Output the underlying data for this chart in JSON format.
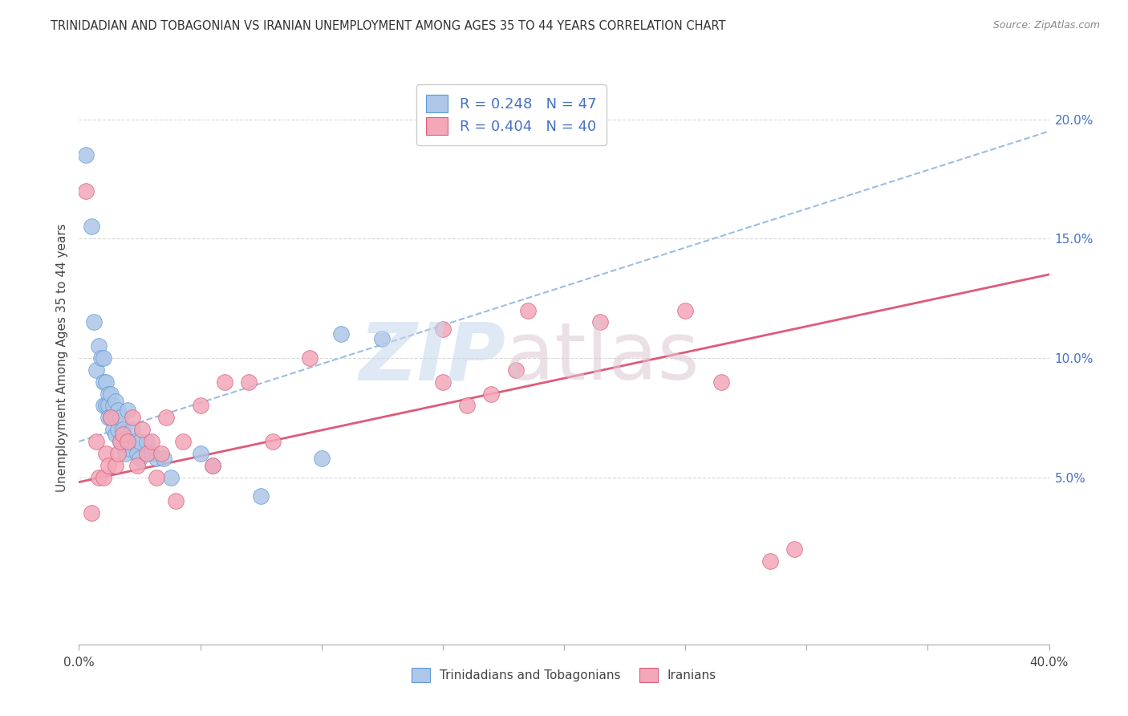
{
  "title": "TRINIDADIAN AND TOBAGONIAN VS IRANIAN UNEMPLOYMENT AMONG AGES 35 TO 44 YEARS CORRELATION CHART",
  "source": "Source: ZipAtlas.com",
  "ylabel": "Unemployment Among Ages 35 to 44 years",
  "xlim": [
    0.0,
    0.4
  ],
  "ylim": [
    -0.02,
    0.22
  ],
  "yticks_right": [
    0.05,
    0.1,
    0.15,
    0.2
  ],
  "ytick_labels_right": [
    "5.0%",
    "10.0%",
    "15.0%",
    "20.0%"
  ],
  "blue_R": 0.248,
  "blue_N": 47,
  "pink_R": 0.404,
  "pink_N": 40,
  "blue_color": "#aec6e8",
  "blue_edge_color": "#5b9bd5",
  "blue_dashed_color": "#9dbde0",
  "pink_color": "#f4a7b9",
  "pink_edge_color": "#d4607a",
  "pink_line_color": "#e05a78",
  "background_color": "#ffffff",
  "grid_color": "#d8d8d8",
  "blue_scatter_x": [
    0.003,
    0.005,
    0.006,
    0.007,
    0.008,
    0.009,
    0.01,
    0.01,
    0.01,
    0.011,
    0.011,
    0.012,
    0.012,
    0.012,
    0.013,
    0.013,
    0.014,
    0.014,
    0.015,
    0.015,
    0.015,
    0.016,
    0.016,
    0.017,
    0.017,
    0.018,
    0.018,
    0.019,
    0.02,
    0.02,
    0.021,
    0.022,
    0.023,
    0.024,
    0.025,
    0.025,
    0.028,
    0.03,
    0.032,
    0.035,
    0.038,
    0.05,
    0.055,
    0.075,
    0.1,
    0.108,
    0.125
  ],
  "blue_scatter_y": [
    0.185,
    0.155,
    0.115,
    0.095,
    0.105,
    0.1,
    0.1,
    0.09,
    0.08,
    0.09,
    0.08,
    0.085,
    0.08,
    0.075,
    0.085,
    0.075,
    0.08,
    0.07,
    0.082,
    0.075,
    0.068,
    0.078,
    0.07,
    0.075,
    0.065,
    0.07,
    0.063,
    0.06,
    0.078,
    0.065,
    0.062,
    0.07,
    0.065,
    0.06,
    0.065,
    0.058,
    0.065,
    0.06,
    0.058,
    0.058,
    0.05,
    0.06,
    0.055,
    0.042,
    0.058,
    0.11,
    0.108
  ],
  "pink_scatter_x": [
    0.003,
    0.005,
    0.007,
    0.008,
    0.01,
    0.011,
    0.012,
    0.013,
    0.015,
    0.016,
    0.017,
    0.018,
    0.02,
    0.022,
    0.024,
    0.026,
    0.028,
    0.03,
    0.032,
    0.034,
    0.036,
    0.04,
    0.043,
    0.05,
    0.055,
    0.06,
    0.07,
    0.08,
    0.095,
    0.15,
    0.16,
    0.17,
    0.185,
    0.215,
    0.25,
    0.265,
    0.285,
    0.295,
    0.15,
    0.18
  ],
  "pink_scatter_y": [
    0.17,
    0.035,
    0.065,
    0.05,
    0.05,
    0.06,
    0.055,
    0.075,
    0.055,
    0.06,
    0.065,
    0.068,
    0.065,
    0.075,
    0.055,
    0.07,
    0.06,
    0.065,
    0.05,
    0.06,
    0.075,
    0.04,
    0.065,
    0.08,
    0.055,
    0.09,
    0.09,
    0.065,
    0.1,
    0.09,
    0.08,
    0.085,
    0.12,
    0.115,
    0.12,
    0.09,
    0.015,
    0.02,
    0.112,
    0.095
  ],
  "blue_trendline_x": [
    0.0,
    0.4
  ],
  "blue_trendline_y": [
    0.065,
    0.195
  ],
  "pink_trendline_x": [
    0.0,
    0.4
  ],
  "pink_trendline_y": [
    0.048,
    0.135
  ]
}
